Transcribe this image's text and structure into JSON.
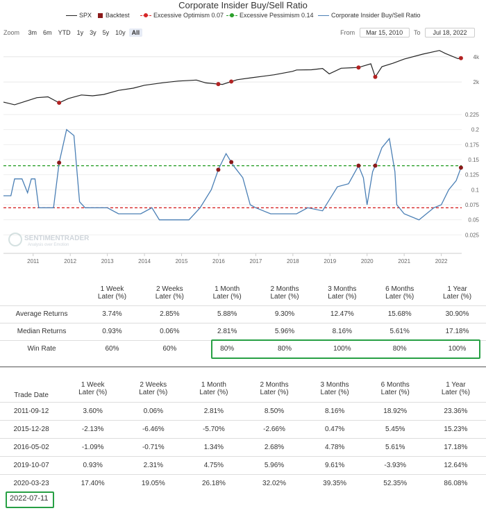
{
  "chart_data": {
    "type": "line",
    "title": "Corporate Insider Buy/Sell Ratio",
    "legend": [
      {
        "name": "SPX",
        "color": "#222222",
        "symbol": "line"
      },
      {
        "name": "Backtest",
        "color": "#8b1a1a",
        "symbol": "square"
      },
      {
        "name": "Excessive Optimism 0.07",
        "color": "#d62728",
        "symbol": "dashed"
      },
      {
        "name": "Excessive Pessimism 0.14",
        "color": "#2ca02c",
        "symbol": "dashed"
      },
      {
        "name": "Corporate Insider Buy/Sell Ratio",
        "color": "#4a7fb5",
        "symbol": "line"
      }
    ],
    "x_ticks": [
      "2011",
      "2012",
      "2013",
      "2014",
      "2015",
      "2016",
      "2017",
      "2018",
      "2019",
      "2020",
      "2021",
      "2022"
    ],
    "x_range": [
      2010.2,
      2022.55
    ],
    "spx_axis": {
      "ticks": [
        "4k",
        "2k"
      ],
      "tick_values": [
        4000,
        2000
      ]
    },
    "ratio_axis": {
      "ticks": [
        "0.225",
        "0.2",
        "0.175",
        "0.15",
        "0.125",
        "0.1",
        "0.075",
        "0.05",
        "0.025"
      ],
      "ylim": [
        0.0,
        0.225
      ]
    },
    "thresholds": {
      "optimism": 0.07,
      "pessimism": 0.14
    },
    "spx_series": [
      [
        2010.2,
        1150
      ],
      [
        2010.5,
        1070
      ],
      [
        2010.8,
        1180
      ],
      [
        2011.1,
        1300
      ],
      [
        2011.4,
        1330
      ],
      [
        2011.7,
        1130
      ],
      [
        2011.95,
        1270
      ],
      [
        2012.3,
        1400
      ],
      [
        2012.6,
        1370
      ],
      [
        2012.9,
        1420
      ],
      [
        2013.3,
        1590
      ],
      [
        2013.7,
        1690
      ],
      [
        2014.0,
        1830
      ],
      [
        2014.5,
        1960
      ],
      [
        2014.9,
        2050
      ],
      [
        2015.4,
        2110
      ],
      [
        2015.65,
        1950
      ],
      [
        2016.1,
        1870
      ],
      [
        2016.5,
        2130
      ],
      [
        2016.9,
        2250
      ],
      [
        2017.5,
        2440
      ],
      [
        2017.99,
        2680
      ],
      [
        2018.1,
        2780
      ],
      [
        2018.5,
        2800
      ],
      [
        2018.8,
        2900
      ],
      [
        2018.98,
        2500
      ],
      [
        2019.3,
        2920
      ],
      [
        2019.77,
        2980
      ],
      [
        2020.1,
        3300
      ],
      [
        2020.22,
        2300
      ],
      [
        2020.4,
        3050
      ],
      [
        2020.7,
        3350
      ],
      [
        2021.0,
        3750
      ],
      [
        2021.5,
        4300
      ],
      [
        2021.95,
        4750
      ],
      [
        2022.1,
        4400
      ],
      [
        2022.45,
        3800
      ],
      [
        2022.55,
        3860
      ]
    ],
    "ratio_series": [
      [
        2010.2,
        0.09
      ],
      [
        2010.4,
        0.09
      ],
      [
        2010.5,
        0.118
      ],
      [
        2010.7,
        0.118
      ],
      [
        2010.85,
        0.095
      ],
      [
        2010.95,
        0.118
      ],
      [
        2011.05,
        0.118
      ],
      [
        2011.15,
        0.07
      ],
      [
        2011.55,
        0.07
      ],
      [
        2011.7,
        0.145
      ],
      [
        2011.9,
        0.2
      ],
      [
        2012.1,
        0.19
      ],
      [
        2012.25,
        0.08
      ],
      [
        2012.4,
        0.07
      ],
      [
        2013.0,
        0.07
      ],
      [
        2013.3,
        0.06
      ],
      [
        2013.9,
        0.06
      ],
      [
        2014.2,
        0.07
      ],
      [
        2014.4,
        0.05
      ],
      [
        2015.2,
        0.05
      ],
      [
        2015.5,
        0.07
      ],
      [
        2015.8,
        0.1
      ],
      [
        2016.0,
        0.135
      ],
      [
        2016.2,
        0.16
      ],
      [
        2016.4,
        0.14
      ],
      [
        2016.65,
        0.12
      ],
      [
        2016.85,
        0.075
      ],
      [
        2017.0,
        0.07
      ],
      [
        2017.4,
        0.06
      ],
      [
        2018.1,
        0.06
      ],
      [
        2018.4,
        0.07
      ],
      [
        2018.8,
        0.065
      ],
      [
        2019.0,
        0.085
      ],
      [
        2019.2,
        0.105
      ],
      [
        2019.5,
        0.11
      ],
      [
        2019.77,
        0.14
      ],
      [
        2019.9,
        0.12
      ],
      [
        2020.0,
        0.075
      ],
      [
        2020.15,
        0.13
      ],
      [
        2020.22,
        0.14
      ],
      [
        2020.4,
        0.17
      ],
      [
        2020.6,
        0.185
      ],
      [
        2020.75,
        0.13
      ],
      [
        2020.8,
        0.075
      ],
      [
        2021.0,
        0.06
      ],
      [
        2021.4,
        0.05
      ],
      [
        2021.6,
        0.06
      ],
      [
        2021.8,
        0.07
      ],
      [
        2022.0,
        0.075
      ],
      [
        2022.2,
        0.1
      ],
      [
        2022.4,
        0.115
      ],
      [
        2022.55,
        0.14
      ]
    ],
    "backtest_dates": [
      "2011-09-12",
      "2015-12-28",
      "2016-05-02",
      "2019-10-07",
      "2020-03-23",
      "2022-07-11"
    ],
    "backtest_x": [
      2011.7,
      2015.99,
      2016.34,
      2019.77,
      2020.22,
      2022.53
    ]
  },
  "ui": {
    "zoom_label": "Zoom",
    "zoom_buttons": [
      "3m",
      "6m",
      "YTD",
      "1y",
      "3y",
      "5y",
      "10y",
      "All"
    ],
    "from_label": "From",
    "from_value": "Mar 15, 2010",
    "to_label": "To",
    "to_value": "Jul 18, 2022",
    "watermark_title": "SENTIMENTRADER",
    "watermark_sub": "Analysis over Emotion"
  },
  "summary_table": {
    "headers": [
      "1 Week Later (%)",
      "2 Weeks Later (%)",
      "1 Month Later (%)",
      "2 Months Later (%)",
      "3 Months Later (%)",
      "6 Months Later (%)",
      "1 Year Later (%)"
    ],
    "rows": [
      {
        "label": "Average Returns",
        "cells": [
          "3.74%",
          "2.85%",
          "5.88%",
          "9.30%",
          "12.47%",
          "15.68%",
          "30.90%"
        ]
      },
      {
        "label": "Median Returns",
        "cells": [
          "0.93%",
          "0.06%",
          "2.81%",
          "5.96%",
          "8.16%",
          "5.61%",
          "17.18%"
        ]
      },
      {
        "label": "Win Rate",
        "cells": [
          "60%",
          "60%",
          "80%",
          "80%",
          "100%",
          "80%",
          "100%"
        ]
      }
    ]
  },
  "trades_table": {
    "date_header": "Trade Date",
    "headers": [
      "1 Week Later (%)",
      "2 Weeks Later (%)",
      "1 Month Later (%)",
      "2 Months Later (%)",
      "3 Months Later (%)",
      "6 Months Later (%)",
      "1 Year Later (%)"
    ],
    "rows": [
      {
        "date": "2011-09-12",
        "cells": [
          "3.60%",
          "0.06%",
          "2.81%",
          "8.50%",
          "8.16%",
          "18.92%",
          "23.36%"
        ]
      },
      {
        "date": "2015-12-28",
        "cells": [
          "-2.13%",
          "-6.46%",
          "-5.70%",
          "-2.66%",
          "0.47%",
          "5.45%",
          "15.23%"
        ]
      },
      {
        "date": "2016-05-02",
        "cells": [
          "-1.09%",
          "-0.71%",
          "1.34%",
          "2.68%",
          "4.78%",
          "5.61%",
          "17.18%"
        ]
      },
      {
        "date": "2019-10-07",
        "cells": [
          "0.93%",
          "2.31%",
          "4.75%",
          "5.96%",
          "9.61%",
          "-3.93%",
          "12.64%"
        ]
      },
      {
        "date": "2020-03-23",
        "cells": [
          "17.40%",
          "19.05%",
          "26.18%",
          "32.02%",
          "39.35%",
          "52.35%",
          "86.08%"
        ]
      }
    ],
    "last_date": "2022-07-11"
  }
}
